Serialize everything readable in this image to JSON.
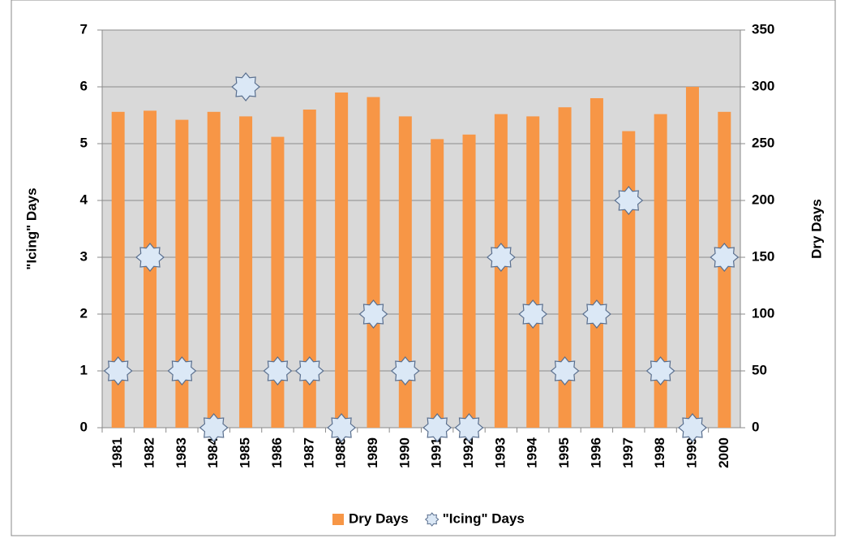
{
  "chart_data": {
    "type": "bar",
    "categories": [
      "1981",
      "1982",
      "1983",
      "1984",
      "1985",
      "1986",
      "1987",
      "1988",
      "1989",
      "1990",
      "1991",
      "1992",
      "1993",
      "1994",
      "1995",
      "1996",
      "1997",
      "1998",
      "1999",
      "2000"
    ],
    "series": [
      {
        "name": "Dry Days",
        "type": "bar",
        "axis": "y2",
        "color": "#f79646",
        "values": [
          278,
          279,
          271,
          278,
          274,
          256,
          280,
          295,
          291,
          274,
          254,
          258,
          276,
          274,
          282,
          290,
          261,
          276,
          300,
          278
        ]
      },
      {
        "name": "\"Icing\" Days",
        "type": "scatter",
        "color": "#dbe8f6",
        "values": [
          1,
          3,
          1,
          0,
          6,
          1,
          1,
          0,
          2,
          1,
          0,
          0,
          3,
          2,
          1,
          2,
          4,
          1,
          0,
          3
        ]
      }
    ],
    "ylabel": "\"Icing\" Days",
    "y2label": "Dry Days",
    "ylim": [
      0,
      7
    ],
    "yticks": [
      0,
      1,
      2,
      3,
      4,
      5,
      6,
      7
    ],
    "y2lim": [
      0,
      350
    ],
    "y2ticks": [
      0,
      50,
      100,
      150,
      200,
      250,
      300,
      350
    ],
    "grid": true,
    "legend": "bottom"
  }
}
